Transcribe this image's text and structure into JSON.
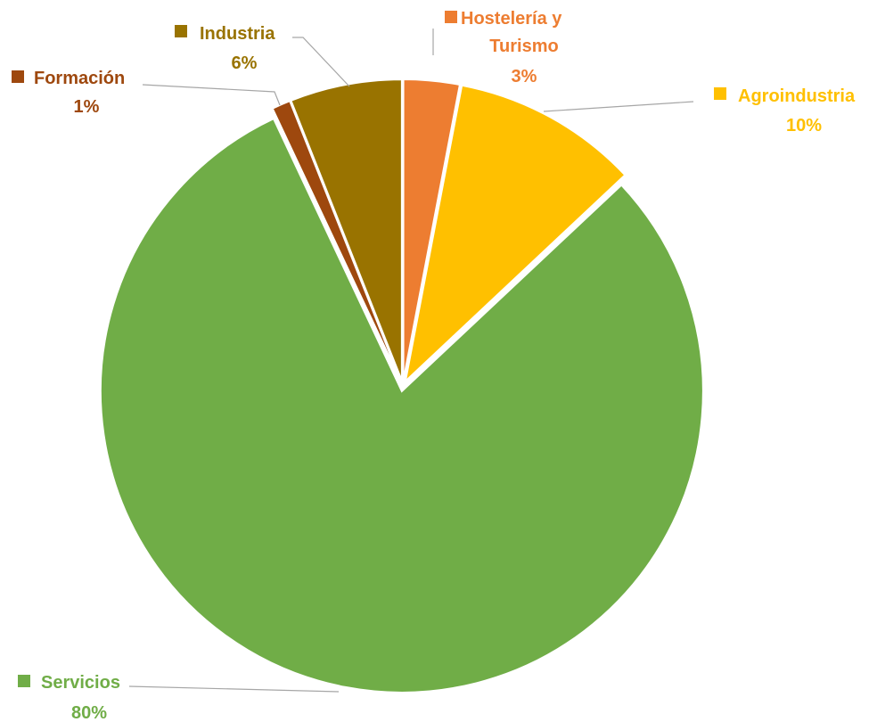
{
  "chart_data": {
    "type": "pie",
    "title": "",
    "legend": "none",
    "slices": [
      {
        "label": "Hostelería y Turismo",
        "label_lines": [
          "Hostelería y",
          "Turismo"
        ],
        "value": 3,
        "percent_label": "3%",
        "color": "#ED7D31"
      },
      {
        "label": "Agroindustria",
        "label_lines": [
          "Agroindustria"
        ],
        "value": 10,
        "percent_label": "10%",
        "color": "#FFC000"
      },
      {
        "label": "Servicios",
        "label_lines": [
          "Servicios"
        ],
        "value": 80,
        "percent_label": "80%",
        "color": "#70AD47"
      },
      {
        "label": "Formación",
        "label_lines": [
          "Formación"
        ],
        "value": 1,
        "percent_label": "1%",
        "color": "#9E480E"
      },
      {
        "label": "Industria",
        "label_lines": [
          "Industria"
        ],
        "value": 6,
        "percent_label": "6%",
        "color": "#997300"
      }
    ]
  }
}
